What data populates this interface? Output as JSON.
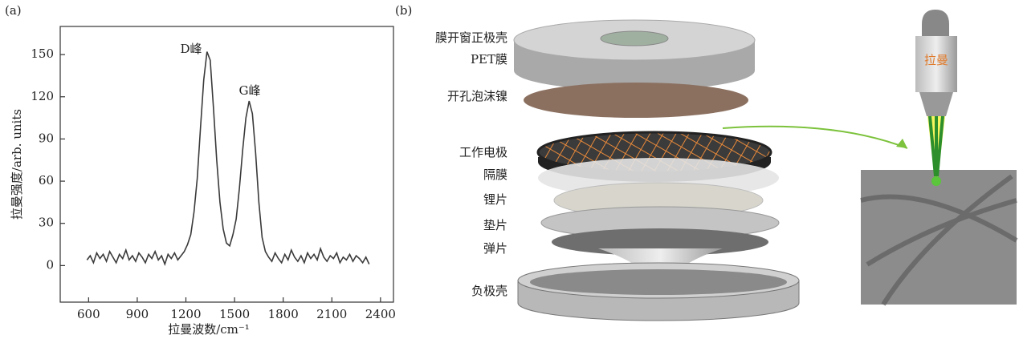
{
  "panel_a": {
    "label": "(a)"
  },
  "chart_data": {
    "type": "line",
    "xlabel": "拉曼波数/cm⁻¹",
    "ylabel": "拉曼强度/arb. units",
    "annotations": [
      "D峰",
      "G峰"
    ],
    "x": [
      590,
      610,
      630,
      650,
      670,
      690,
      710,
      730,
      750,
      770,
      790,
      810,
      830,
      850,
      870,
      890,
      910,
      930,
      950,
      970,
      990,
      1010,
      1030,
      1050,
      1070,
      1090,
      1110,
      1130,
      1150,
      1170,
      1190,
      1210,
      1230,
      1250,
      1270,
      1290,
      1310,
      1330,
      1350,
      1370,
      1390,
      1410,
      1430,
      1450,
      1470,
      1490,
      1510,
      1530,
      1550,
      1570,
      1590,
      1610,
      1630,
      1650,
      1670,
      1690,
      1710,
      1730,
      1750,
      1770,
      1790,
      1810,
      1830,
      1850,
      1870,
      1890,
      1910,
      1930,
      1950,
      1970,
      1990,
      2010,
      2030,
      2050,
      2070,
      2090,
      2110,
      2130,
      2150,
      2170,
      2190,
      2210,
      2230,
      2250,
      2270,
      2290,
      2310,
      2330
    ],
    "values": [
      4,
      7,
      2,
      9,
      5,
      8,
      3,
      10,
      6,
      2,
      8,
      5,
      11,
      4,
      7,
      3,
      9,
      6,
      2,
      8,
      5,
      10,
      4,
      7,
      1,
      8,
      5,
      9,
      4,
      7,
      10,
      15,
      22,
      38,
      62,
      98,
      132,
      152,
      146,
      112,
      75,
      45,
      26,
      16,
      14,
      22,
      33,
      55,
      82,
      105,
      117,
      108,
      80,
      45,
      20,
      10,
      6,
      3,
      9,
      5,
      2,
      8,
      4,
      11,
      6,
      3,
      7,
      2,
      9,
      5,
      8,
      4,
      12,
      6,
      3,
      7,
      5,
      9,
      2,
      6,
      4,
      8,
      3,
      7,
      5,
      2,
      6,
      1
    ],
    "color": "#3a3a3a",
    "xlim": [
      425,
      2480
    ],
    "xticks": [
      600,
      900,
      1200,
      1500,
      1800,
      2100,
      2400
    ],
    "ylim": [
      -26,
      170
    ],
    "yticks": [
      0,
      30,
      60,
      90,
      120,
      150
    ]
  },
  "panel_b": {
    "label": "(b)",
    "layers": [
      "膜开窗正极壳",
      "PET膜",
      "开孔泡沫镍",
      "工作电极",
      "隔膜",
      "锂片",
      "垫片",
      "弹片",
      "负极壳"
    ],
    "objective_label": "拉曼"
  }
}
